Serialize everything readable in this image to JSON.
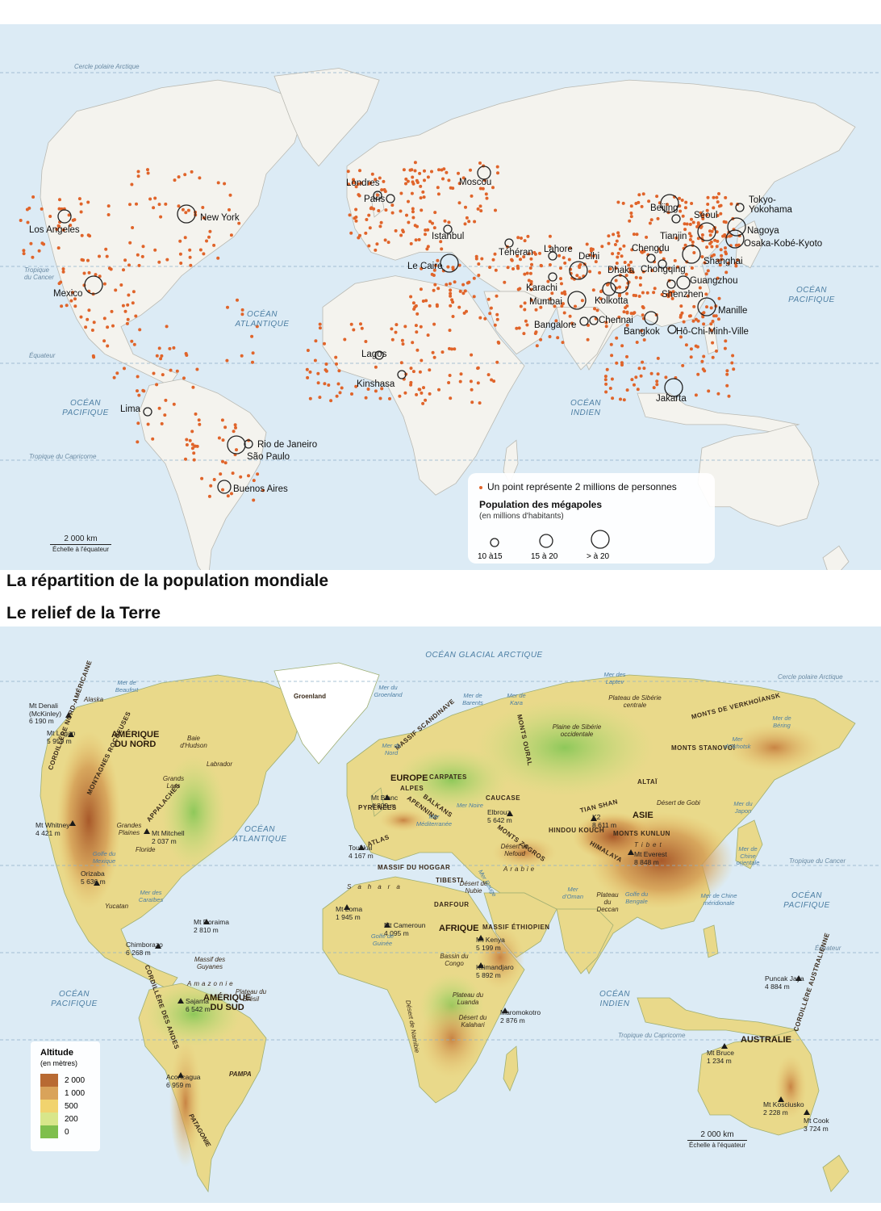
{
  "map1": {
    "title": "La répartition de la population mondiale",
    "cities": [
      {
        "name": "Los Angeles",
        "size": "15-20"
      },
      {
        "name": "New York",
        "size": ">20"
      },
      {
        "name": "Mexico",
        "size": ">20"
      },
      {
        "name": "Lima",
        "size": "10-15"
      },
      {
        "name": "Rio de Janeiro",
        "size": "10-15"
      },
      {
        "name": "São Paulo",
        "size": ">20"
      },
      {
        "name": "Buenos Aires",
        "size": "15-20"
      },
      {
        "name": "Londres",
        "size": "10-15"
      },
      {
        "name": "Paris",
        "size": "10-15"
      },
      {
        "name": "Moscou",
        "size": "15-20"
      },
      {
        "name": "Istanbul",
        "size": "10-15"
      },
      {
        "name": "Le Caire",
        "size": ">20"
      },
      {
        "name": "Téhéran",
        "size": "10-15"
      },
      {
        "name": "Lahore",
        "size": "10-15"
      },
      {
        "name": "Karachi",
        "size": "10-15"
      },
      {
        "name": "Delhi",
        "size": ">20"
      },
      {
        "name": "Mumbai",
        "size": ">20"
      },
      {
        "name": "Bangalore",
        "size": "10-15"
      },
      {
        "name": "Chennai",
        "size": "10-15"
      },
      {
        "name": "Kolkotta",
        "size": "15-20"
      },
      {
        "name": "Dhaka",
        "size": ">20"
      },
      {
        "name": "Lagos",
        "size": "10-15"
      },
      {
        "name": "Kinshasa",
        "size": "10-15"
      },
      {
        "name": "Beijing",
        "size": ">20"
      },
      {
        "name": "Tianjin",
        "size": "10-15"
      },
      {
        "name": "Séoul",
        "size": ">20"
      },
      {
        "name": "Tokyo-Yokohama",
        "size": ">20"
      },
      {
        "name": "Nagoya",
        "size": "10-15"
      },
      {
        "name": "Osaka-Kobé-Kyoto",
        "size": ">20"
      },
      {
        "name": "Chengdu",
        "size": "10-15"
      },
      {
        "name": "Chongqing",
        "size": "10-15"
      },
      {
        "name": "Shanghai",
        "size": ">20"
      },
      {
        "name": "Guangzhou",
        "size": "15-20"
      },
      {
        "name": "Shenzhen",
        "size": "10-15"
      },
      {
        "name": "Manille",
        "size": ">20"
      },
      {
        "name": "Bangkok",
        "size": "15-20"
      },
      {
        "name": "Hô-Chi-Minh-Ville",
        "size": "10-15"
      },
      {
        "name": "Jakarta",
        "size": ">20"
      }
    ],
    "oceans": {
      "atl": "OCÉAN\nATLANTIQUE",
      "pac_w": "OCÉAN\nPACIFIQUE",
      "ind": "OCÉAN\nINDIEN",
      "pac_e": "OCÉAN\nPACIFIQUE"
    },
    "lines": {
      "arctic": "Cercle polaire Arctique",
      "cancer": "Tropique\ndu Cancer",
      "equator": "Équateur",
      "capricorn": "Tropique du Capricorne"
    },
    "scale": {
      "distance": "2 000 km",
      "note": "Échelle à l'équateur"
    },
    "legend": {
      "dot_text": "Un point représente 2 millions de personnes",
      "circle_title": "Population des mégapoles",
      "circle_sub": "(en millions d'habitants)",
      "classes": [
        "10 à15",
        "15 à 20",
        "> à 20"
      ]
    },
    "colors": {
      "ocean": "#dcebf5",
      "land": "#f4f3ee",
      "dot": "#e0642a",
      "border": "#b9b9b2"
    }
  },
  "map2": {
    "title": "Le relief de la Terre",
    "regions": {
      "amn": "AMÉRIQUE\nDU NORD",
      "ams": "AMÉRIQUE\nDU SUD",
      "eur": "EUROPE",
      "afr": "AFRIQUE",
      "asie": "ASIE",
      "aus": "AUSTRALIE"
    },
    "oceans": {
      "arc": "OCÉAN GLACIAL ARCTIQUE",
      "atl": "OCÉAN\nATLANTIQUE",
      "pac_w": "OCÉAN\nPACIFIQUE",
      "ind": "OCÉAN\nINDIEN",
      "pac_e": "OCÉAN\nPACIFIQUE"
    },
    "peaks": [
      {
        "label": "Mt Denali\n(McKinley)\n6 190 m"
      },
      {
        "label": "Mt Logan\n5 959 m"
      },
      {
        "label": "Mt Whitney\n4 421 m"
      },
      {
        "label": "Mt Mitchell\n2 037 m"
      },
      {
        "label": "Orizaba\n5 636 m"
      },
      {
        "label": "Mt Roraima\n2 810 m"
      },
      {
        "label": "Chimborazo\n6 268 m"
      },
      {
        "label": "Sajama\n6 542 m"
      },
      {
        "label": "Aconcagua\n6 959 m"
      },
      {
        "label": "Mt Blanc\n4 809 m"
      },
      {
        "label": "Elbrouz\n5 642 m"
      },
      {
        "label": "Toubkal\n4 167 m"
      },
      {
        "label": "Mt Loma\n1 945 m"
      },
      {
        "label": "Mt Cameroun\n4 095 m"
      },
      {
        "label": "Mt Kenya\n5 199 m"
      },
      {
        "label": "Kilimandjaro\n5 892 m"
      },
      {
        "label": "Maromokotro\n2 876 m"
      },
      {
        "label": "K2\n8 611 m"
      },
      {
        "label": "Mt Everest\n8 848 m"
      },
      {
        "label": "Puncak Jaya\n4 884 m"
      },
      {
        "label": "Mt Bruce\n1 234 m"
      },
      {
        "label": "Mt Kosciusko\n2 228 m"
      },
      {
        "label": "Mt Cook\n3 724 m"
      }
    ],
    "ranges": [
      "MONTAGNES ROCHEUSES",
      "CORDILLÈRE NORD-AMÉRICAINE",
      "APPALACHES",
      "CORDILLÈRE DES ANDES",
      "ALPES",
      "CARPATES",
      "PYRÉNÉES",
      "APENNINS",
      "BALKANS",
      "CAUCASE",
      "MONTS ZAGROS",
      "ATLAS",
      "MONTS OURAL",
      "ALTAÏ",
      "TIAN SHAN",
      "HIMALAYA",
      "HINDOU KOUCH",
      "MONTS KUNLUN",
      "MONTS DE VERKHOÏANSK",
      "MONTS STANOVOÏ",
      "MASSIF SCANDINAVE",
      "MASSIF DU HOGGAR",
      "TIBESTI",
      "DARFOUR",
      "MASSIF ÉTHIOPIEN",
      "CORDILLÈRE AUSTRALIENNE"
    ],
    "features": [
      "Alaska",
      "Labrador",
      "Grandes Plaines",
      "Floride",
      "Yucatan",
      "Grands Lacs",
      "Baie d'Hudson",
      "Groenland",
      "Massif des Guyanes",
      "Amazonie",
      "Plateau du Brésil",
      "PAMPA",
      "PATAGONIE",
      "Sahara",
      "Désert de Nubie",
      "Bassin du Congo",
      "Plateau du Luanda",
      "Désert du Kalahari",
      "Désert de Namibie",
      "Arabie",
      "Désert du Nefoud",
      "Plaine de Sibérie occidentale",
      "Plateau de Sibérie centrale",
      "Tibet",
      "Désert de Gobi",
      "Plateau du Deccan",
      "Mer de Beaufort",
      "Mer du Groenland",
      "Mer de Barents",
      "Mer de Kara",
      "Mer des Laptev",
      "Mer de Béring",
      "Mer d'Okhotsk",
      "Mer du Japon",
      "Mer de Chine orientale",
      "Mer de Chine méridionale",
      "Golfe du Bengale",
      "Mer d'Oman",
      "Mer Rouge",
      "Mer Noire",
      "Mer Méditerranée",
      "Mer du Nord",
      "Mer des Caraïbes",
      "Golfe du Mexique",
      "Golfe de Guinée"
    ],
    "lines": {
      "arctic": "Cercle polaire Arctique",
      "cancer": "Tropique du Cancer",
      "equator": "Équateur",
      "capricorn": "Tropique du Capricorne"
    },
    "scale": {
      "distance": "2 000 km",
      "note": "Échelle à l'équateur"
    },
    "legend": {
      "title": "Altitude",
      "sub": "(en mètres)",
      "classes": [
        {
          "label": "2 000",
          "color": "#b86a33"
        },
        {
          "label": "1 000",
          "color": "#d9a35a"
        },
        {
          "label": "500",
          "color": "#f1d36e"
        },
        {
          "label": "200",
          "color": "#d8e68a"
        },
        {
          "label": "0",
          "color": "#7fbf4d"
        }
      ]
    },
    "colors": {
      "ocean": "#dcebf5",
      "ice": "#ffffff"
    }
  }
}
